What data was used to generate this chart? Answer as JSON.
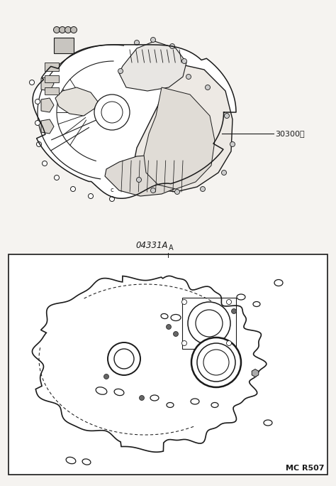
{
  "bg_color": "#f5f3f0",
  "line_color": "#1a1a1a",
  "fig_width": 4.74,
  "fig_height": 6.84,
  "dpi": 100,
  "label_30300": "30300。",
  "label_04331A": "04331A",
  "label_A": "A",
  "label_MCR507": "MC R507"
}
